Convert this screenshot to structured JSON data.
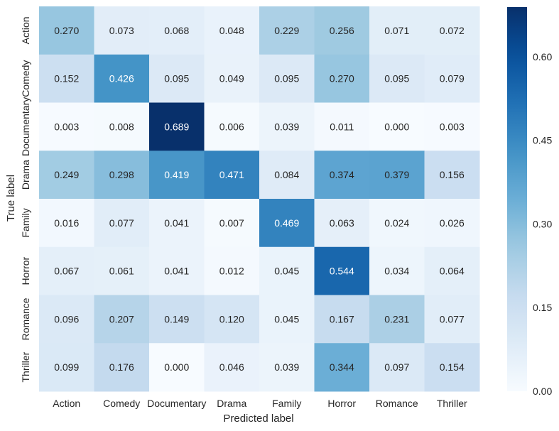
{
  "chart_data": {
    "type": "heatmap",
    "title": "",
    "xlabel": "Predicted label",
    "ylabel": "True label",
    "x_categories": [
      "Action",
      "Comedy",
      "Documentary",
      "Drama",
      "Family",
      "Horror",
      "Romance",
      "Thriller"
    ],
    "y_categories": [
      "Action",
      "Comedy",
      "Documentary",
      "Drama",
      "Family",
      "Horror",
      "Romance",
      "Thriller"
    ],
    "values": [
      [
        0.27,
        0.073,
        0.068,
        0.048,
        0.229,
        0.256,
        0.071,
        0.072
      ],
      [
        0.152,
        0.426,
        0.095,
        0.049,
        0.095,
        0.27,
        0.095,
        0.079
      ],
      [
        0.003,
        0.008,
        0.689,
        0.006,
        0.039,
        0.011,
        0.0,
        0.003
      ],
      [
        0.249,
        0.298,
        0.419,
        0.471,
        0.084,
        0.374,
        0.379,
        0.156
      ],
      [
        0.016,
        0.077,
        0.041,
        0.007,
        0.469,
        0.063,
        0.024,
        0.026
      ],
      [
        0.067,
        0.061,
        0.041,
        0.012,
        0.045,
        0.544,
        0.034,
        0.064
      ],
      [
        0.096,
        0.207,
        0.149,
        0.12,
        0.045,
        0.167,
        0.231,
        0.077
      ],
      [
        0.099,
        0.176,
        0.0,
        0.046,
        0.039,
        0.344,
        0.097,
        0.154
      ]
    ],
    "colormap": "Blues",
    "vmin": 0.0,
    "vmax": 0.689,
    "colorbar_ticks": [
      "0.00",
      "0.15",
      "0.30",
      "0.45",
      "0.60"
    ],
    "legend": "colorbar-right",
    "grid": false
  }
}
